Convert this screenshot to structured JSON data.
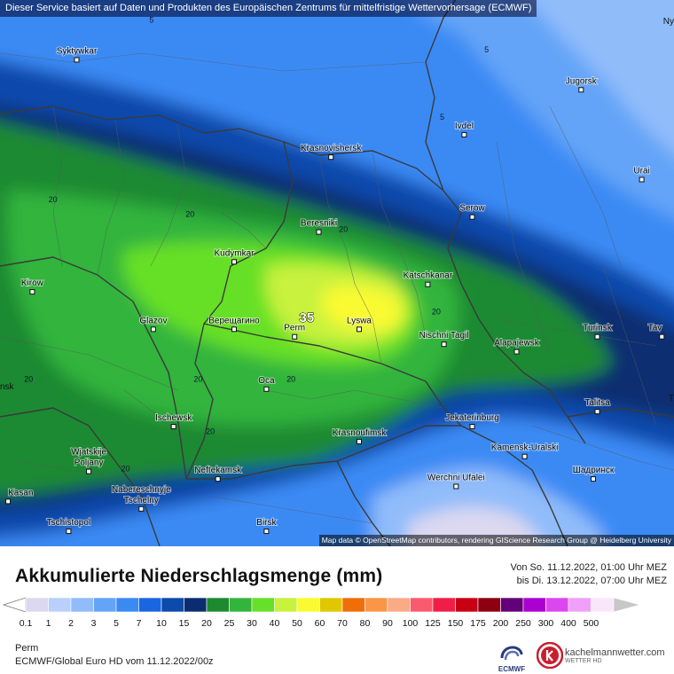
{
  "header": {
    "banner": "Dieser Service basiert auf Daten und Produkten des Europäischen Zentrums für mittelfristige Wettervorhersage (ECMWF)",
    "attribution": "Map data © OpenStreetMap contributors, rendering GIScience Research Group @ Heidelberg University"
  },
  "map": {
    "cities": [
      {
        "name": "Syktywkar",
        "lon": 50.8,
        "lat": 61.7
      },
      {
        "name": "Krasnovishersk",
        "lon": 57.1,
        "lat": 60.4
      },
      {
        "name": "Ivdel",
        "lon": 60.4,
        "lat": 60.7
      },
      {
        "name": "Jugorsk",
        "lon": 63.3,
        "lat": 61.3
      },
      {
        "name": "Urai",
        "lon": 64.8,
        "lat": 60.1
      },
      {
        "name": "Serow",
        "lon": 60.6,
        "lat": 59.6
      },
      {
        "name": "Beresniki",
        "lon": 56.8,
        "lat": 59.4
      },
      {
        "name": "Kudymkar",
        "lon": 54.7,
        "lat": 59.0
      },
      {
        "name": "Kirow",
        "lon": 49.7,
        "lat": 58.6
      },
      {
        "name": "Katschkanar",
        "lon": 59.5,
        "lat": 58.7
      },
      {
        "name": "Glazov",
        "lon": 52.7,
        "lat": 58.1
      },
      {
        "name": "Верещагино",
        "lon": 54.7,
        "lat": 58.1
      },
      {
        "name": "Perm",
        "lon": 56.2,
        "lat": 58.0
      },
      {
        "name": "Lyswa",
        "lon": 57.8,
        "lat": 58.1
      },
      {
        "name": "Nischni Tagil",
        "lon": 59.9,
        "lat": 57.9
      },
      {
        "name": "Alapajewsk",
        "lon": 61.7,
        "lat": 57.8
      },
      {
        "name": "Turinsk",
        "lon": 63.7,
        "lat": 58.0
      },
      {
        "name": "Tav",
        "lon": 65.3,
        "lat": 58.0
      },
      {
        "name": "Oca",
        "lon": 55.5,
        "lat": 57.3
      },
      {
        "name": "Talitsa",
        "lon": 63.7,
        "lat": 57.0
      },
      {
        "name": "Ischewsk",
        "lon": 53.2,
        "lat": 56.8
      },
      {
        "name": "Jekaterinburg",
        "lon": 60.6,
        "lat": 56.8
      },
      {
        "name": "Krasnoufimsk",
        "lon": 57.8,
        "lat": 56.6
      },
      {
        "name": "Kamensk-Uralski",
        "lon": 61.9,
        "lat": 56.4
      },
      {
        "name": "Wjatskije Poljany",
        "lon": 51.1,
        "lat": 56.2
      },
      {
        "name": "Neftekamsk",
        "lon": 54.3,
        "lat": 56.1
      },
      {
        "name": "Werchni Ufalei",
        "lon": 60.2,
        "lat": 56.0
      },
      {
        "name": "Шадринск",
        "lon": 63.6,
        "lat": 56.1
      },
      {
        "name": "Nabereschnyje Tschelny",
        "lon": 52.4,
        "lat": 55.7
      },
      {
        "name": "Kasan",
        "lon": 49.1,
        "lat": 55.8
      },
      {
        "name": "Tschistopol",
        "lon": 50.6,
        "lat": 55.4
      },
      {
        "name": "Birsk",
        "lon": 55.5,
        "lat": 55.4
      }
    ],
    "edge_labels": [
      "Ny",
      "nsk",
      "T"
    ],
    "maximum": {
      "value": "35",
      "lon": 56.5,
      "lat": 58.2
    },
    "contour_labels": [
      {
        "value": "5",
        "lon": 52.6,
        "lat": 62.2
      },
      {
        "value": "5",
        "lon": 59.8,
        "lat": 60.9
      },
      {
        "value": "5",
        "lon": 60.9,
        "lat": 61.8
      },
      {
        "value": "20",
        "lon": 50.1,
        "lat": 59.8
      },
      {
        "value": "20",
        "lon": 53.5,
        "lat": 59.6
      },
      {
        "value": "20",
        "lon": 57.3,
        "lat": 59.4
      },
      {
        "value": "20",
        "lon": 59.6,
        "lat": 58.3
      },
      {
        "value": "20",
        "lon": 49.5,
        "lat": 57.4
      },
      {
        "value": "20",
        "lon": 53.7,
        "lat": 57.4
      },
      {
        "value": "20",
        "lon": 56.0,
        "lat": 57.4
      },
      {
        "value": "20",
        "lon": 54.0,
        "lat": 56.7
      },
      {
        "value": "20",
        "lon": 51.9,
        "lat": 56.2
      }
    ]
  },
  "legend": {
    "title": "Akkumulierte Niederschlagsmenge (mm)",
    "period_from": "Von So. 11.12.2022, 01:00 Uhr MEZ",
    "period_to": "bis Di. 13.12.2022, 07:00 Uhr MEZ",
    "scale": [
      {
        "label": "0.1",
        "color": "#dcd8f0"
      },
      {
        "label": "1",
        "color": "#b8d0fa"
      },
      {
        "label": "2",
        "color": "#90bcfa"
      },
      {
        "label": "3",
        "color": "#64a4f8"
      },
      {
        "label": "5",
        "color": "#3a8af4"
      },
      {
        "label": "7",
        "color": "#1a66e0"
      },
      {
        "label": "10",
        "color": "#0c4aac"
      },
      {
        "label": "15",
        "color": "#0a2d70"
      },
      {
        "label": "20",
        "color": "#1d8a30"
      },
      {
        "label": "25",
        "color": "#33b43d"
      },
      {
        "label": "30",
        "color": "#66e028"
      },
      {
        "label": "40",
        "color": "#c8f23c"
      },
      {
        "label": "50",
        "color": "#fafa32"
      },
      {
        "label": "60",
        "color": "#e0c800"
      },
      {
        "label": "70",
        "color": "#f06e0a"
      },
      {
        "label": "80",
        "color": "#fa9646"
      },
      {
        "label": "90",
        "color": "#faaa84"
      },
      {
        "label": "100",
        "color": "#fa5a6e"
      },
      {
        "label": "125",
        "color": "#f01e46"
      },
      {
        "label": "150",
        "color": "#c80014"
      },
      {
        "label": "175",
        "color": "#8c0012"
      },
      {
        "label": "200",
        "color": "#640078"
      },
      {
        "label": "250",
        "color": "#aa00d2"
      },
      {
        "label": "300",
        "color": "#dc46f0"
      },
      {
        "label": "400",
        "color": "#f0a0f8"
      },
      {
        "label": "500",
        "color": "#fae6fa"
      },
      {
        "label": "",
        "color": "#c8c8c8"
      }
    ]
  },
  "footer": {
    "location": "Perm",
    "model": "ECMWF/Global Euro HD vom  11.12.2022/00z",
    "ecmwf_label": "ECMWF",
    "brand_name": "kachelmannwetter.com",
    "brand_sub": "WETTER HD"
  }
}
